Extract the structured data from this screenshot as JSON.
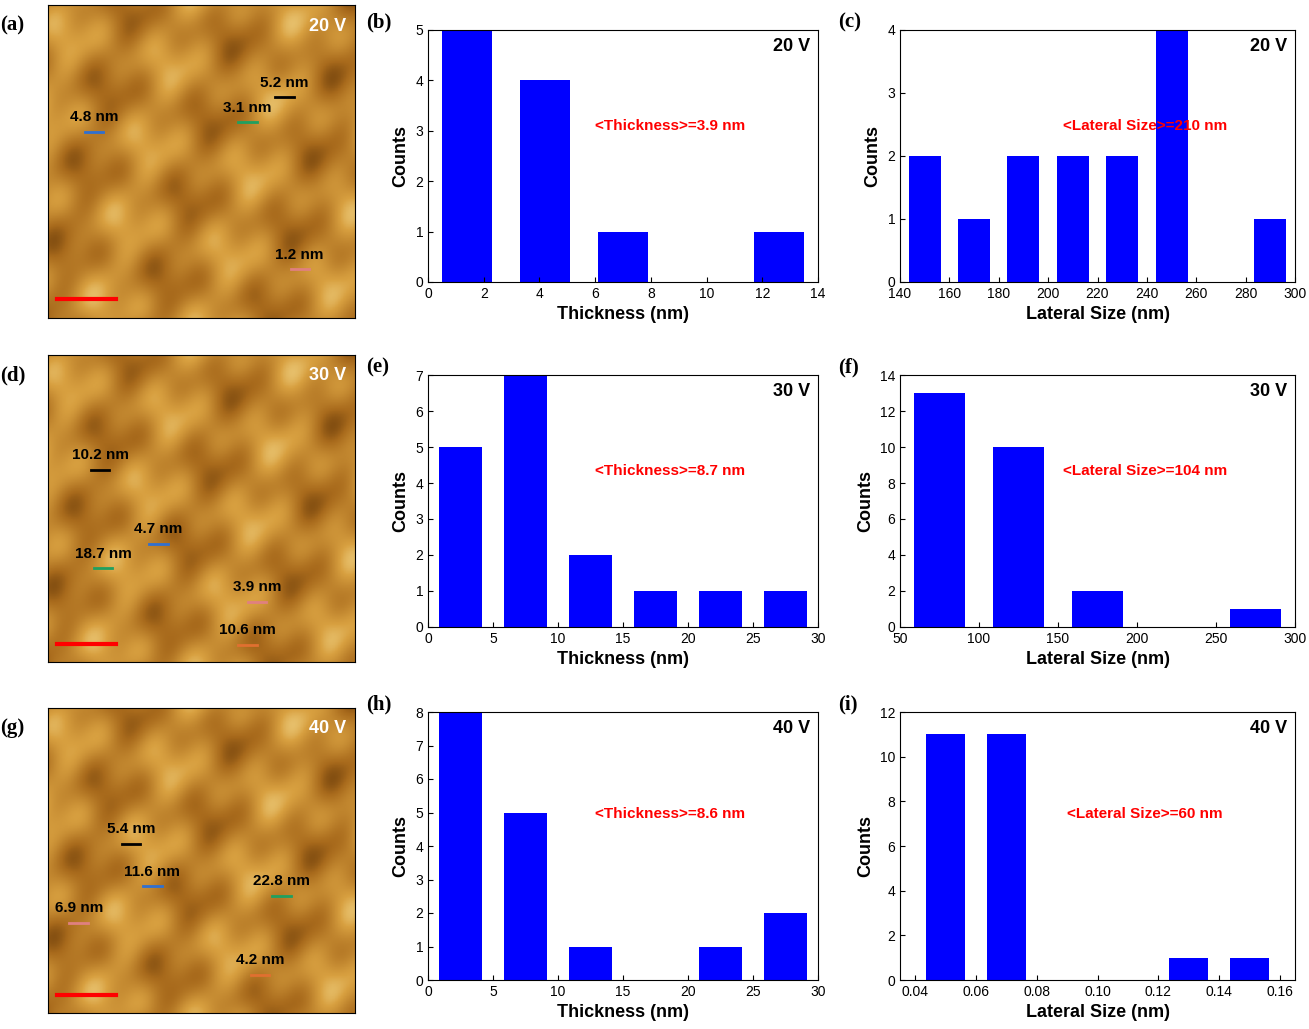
{
  "chart_data": [
    {
      "type": "image",
      "panel_label": "(a)",
      "title": "20 V",
      "annotations": [
        "5.2 nm",
        "4.8 nm",
        "3.1 nm",
        "1.2 nm"
      ]
    },
    {
      "type": "histogram",
      "panel_label": "(b)",
      "title": "20 V",
      "annotation": "<Thickness>=3.9 nm",
      "x_label": "Thickness (nm)",
      "y_label": "Counts",
      "color": "#0000ff",
      "bins": [
        0,
        2.8,
        5.6,
        8.4,
        11.2,
        14
      ],
      "counts": [
        5,
        4,
        1,
        0,
        1
      ],
      "xlim": [
        0,
        14
      ],
      "ylim": [
        0,
        5
      ],
      "xticks": [
        0,
        2,
        4,
        6,
        8,
        10,
        12,
        14
      ],
      "yticks": [
        0,
        1,
        2,
        3,
        4,
        5
      ]
    },
    {
      "type": "histogram",
      "panel_label": "(c)",
      "title": "20 V",
      "annotation": "<Lateral Size>=210 nm",
      "x_label": "Lateral Size (nm)",
      "y_label": "Counts",
      "color": "#0000ff",
      "bins": [
        140,
        160,
        180,
        200,
        220,
        240,
        260,
        280,
        300
      ],
      "counts": [
        2,
        1,
        2,
        2,
        2,
        4,
        0,
        1
      ],
      "xlim": [
        140,
        300
      ],
      "ylim": [
        0,
        4
      ],
      "xticks": [
        140,
        160,
        180,
        200,
        220,
        240,
        260,
        280,
        300
      ],
      "yticks": [
        0,
        1,
        2,
        3,
        4
      ]
    },
    {
      "type": "image",
      "panel_label": "(d)",
      "title": "30 V",
      "annotations": [
        "10.2 nm",
        "4.7 nm",
        "18.7 nm",
        "3.9 nm",
        "10.6 nm"
      ]
    },
    {
      "type": "histogram",
      "panel_label": "(e)",
      "title": "30 V",
      "annotation": "<Thickness>=8.7 nm",
      "x_label": "Thickness (nm)",
      "y_label": "Counts",
      "color": "#0000ff",
      "bins": [
        0,
        5,
        10,
        15,
        20,
        25,
        30
      ],
      "counts": [
        5,
        7,
        2,
        1,
        1,
        1
      ],
      "xlim": [
        0,
        30
      ],
      "ylim": [
        0,
        7
      ],
      "xticks": [
        0,
        5,
        10,
        15,
        20,
        25,
        30
      ],
      "yticks": [
        0,
        1,
        2,
        3,
        4,
        5,
        6,
        7
      ]
    },
    {
      "type": "histogram",
      "panel_label": "(f)",
      "title": "30 V",
      "annotation": "<Lateral Size>=104 nm",
      "x_label": "Lateral Size (nm)",
      "y_label": "Counts",
      "color": "#0000ff",
      "bins": [
        50,
        100,
        150,
        200,
        250,
        300
      ],
      "counts": [
        13,
        10,
        2,
        0,
        1
      ],
      "xlim": [
        50,
        300
      ],
      "ylim": [
        0,
        14
      ],
      "xticks": [
        50,
        100,
        150,
        200,
        250,
        300
      ],
      "yticks": [
        0,
        2,
        4,
        6,
        8,
        10,
        12,
        14
      ]
    },
    {
      "type": "image",
      "panel_label": "(g)",
      "title": "40 V",
      "annotations": [
        "5.4 nm",
        "11.6 nm",
        "22.8 nm",
        "6.9 nm",
        "4.2 nm"
      ]
    },
    {
      "type": "histogram",
      "panel_label": "(h)",
      "title": "40 V",
      "annotation": "<Thickness>=8.6 nm",
      "x_label": "Thickness (nm)",
      "y_label": "Counts",
      "color": "#0000ff",
      "bins": [
        0,
        5,
        10,
        15,
        20,
        25,
        30
      ],
      "counts": [
        8,
        5,
        1,
        0,
        1,
        2
      ],
      "xlim": [
        0,
        30
      ],
      "ylim": [
        0,
        8
      ],
      "xticks": [
        0,
        5,
        10,
        15,
        20,
        25,
        30
      ],
      "yticks": [
        0,
        1,
        2,
        3,
        4,
        5,
        6,
        7,
        8
      ]
    },
    {
      "type": "histogram",
      "panel_label": "(i)",
      "title": "40 V",
      "annotation": "<Lateral Size>=60 nm",
      "x_label": "Lateral Size (nm)",
      "y_label": "Counts",
      "color": "#0000ff",
      "bins": [
        0.04,
        0.06,
        0.08,
        0.1,
        0.12,
        0.14,
        0.16
      ],
      "counts": [
        11,
        11,
        0,
        0,
        1,
        1
      ],
      "xlim": [
        0.035,
        0.165
      ],
      "ylim": [
        0,
        12
      ],
      "xticks": [
        0.04,
        0.06,
        0.08,
        {
          "value": 0.1,
          "label": "0.10"
        },
        0.12,
        0.14,
        0.16
      ],
      "yticks": [
        0,
        2,
        4,
        6,
        8,
        10,
        12
      ]
    }
  ]
}
